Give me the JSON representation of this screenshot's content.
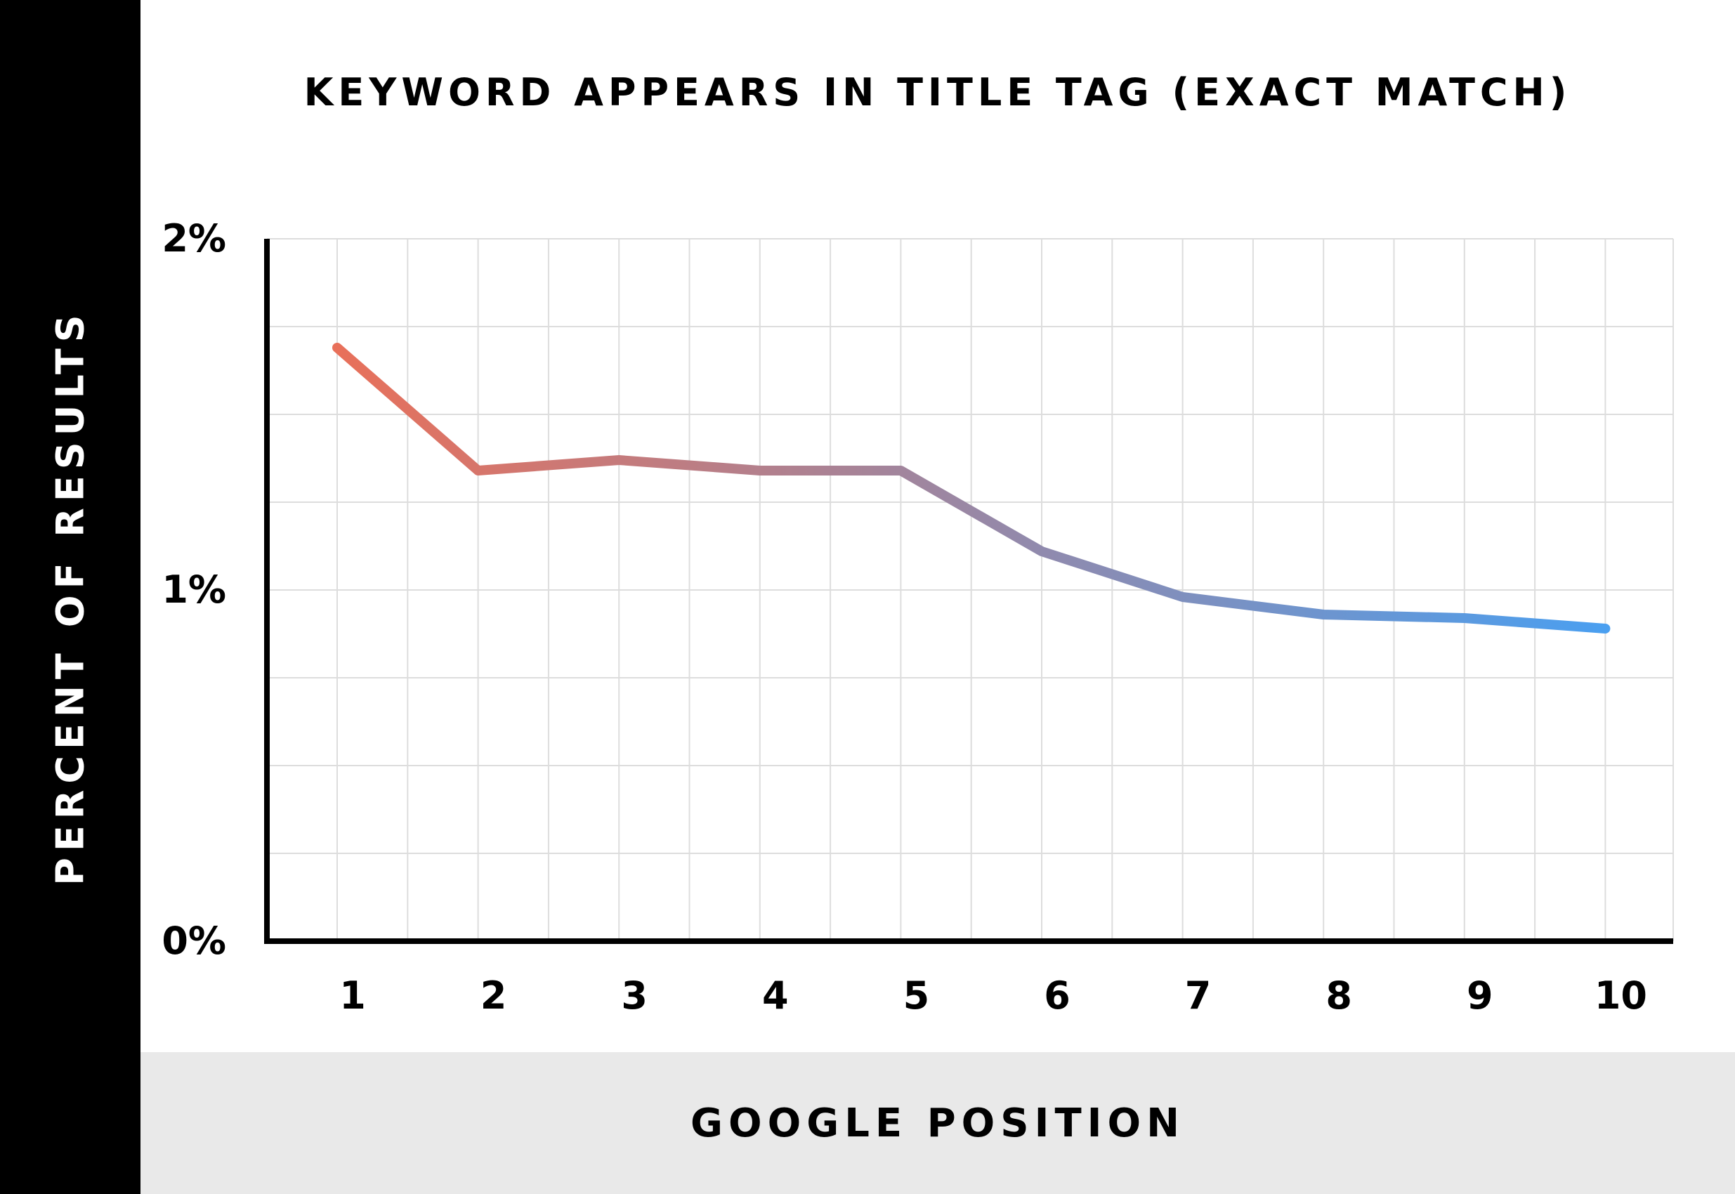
{
  "chart_data": {
    "type": "line",
    "title": "KEYWORD APPEARS IN TITLE TAG (EXACT MATCH)",
    "xlabel": "GOOGLE POSITION",
    "ylabel": "PERCENT OF RESULTS",
    "categories": [
      "1",
      "2",
      "3",
      "4",
      "5",
      "6",
      "7",
      "8",
      "9",
      "10"
    ],
    "values": [
      1.69,
      1.34,
      1.37,
      1.34,
      1.34,
      1.11,
      0.98,
      0.93,
      0.92,
      0.89
    ],
    "ylim": [
      0,
      2
    ],
    "yticks": [
      "0%",
      "1%",
      "2%"
    ],
    "grid": true,
    "line_gradient": [
      "#e8705a",
      "#4a9ff0"
    ],
    "colors": {
      "axis": "#000000",
      "grid": "#dddddd",
      "y_band": "#000000",
      "x_band": "#e9e9e9"
    }
  }
}
